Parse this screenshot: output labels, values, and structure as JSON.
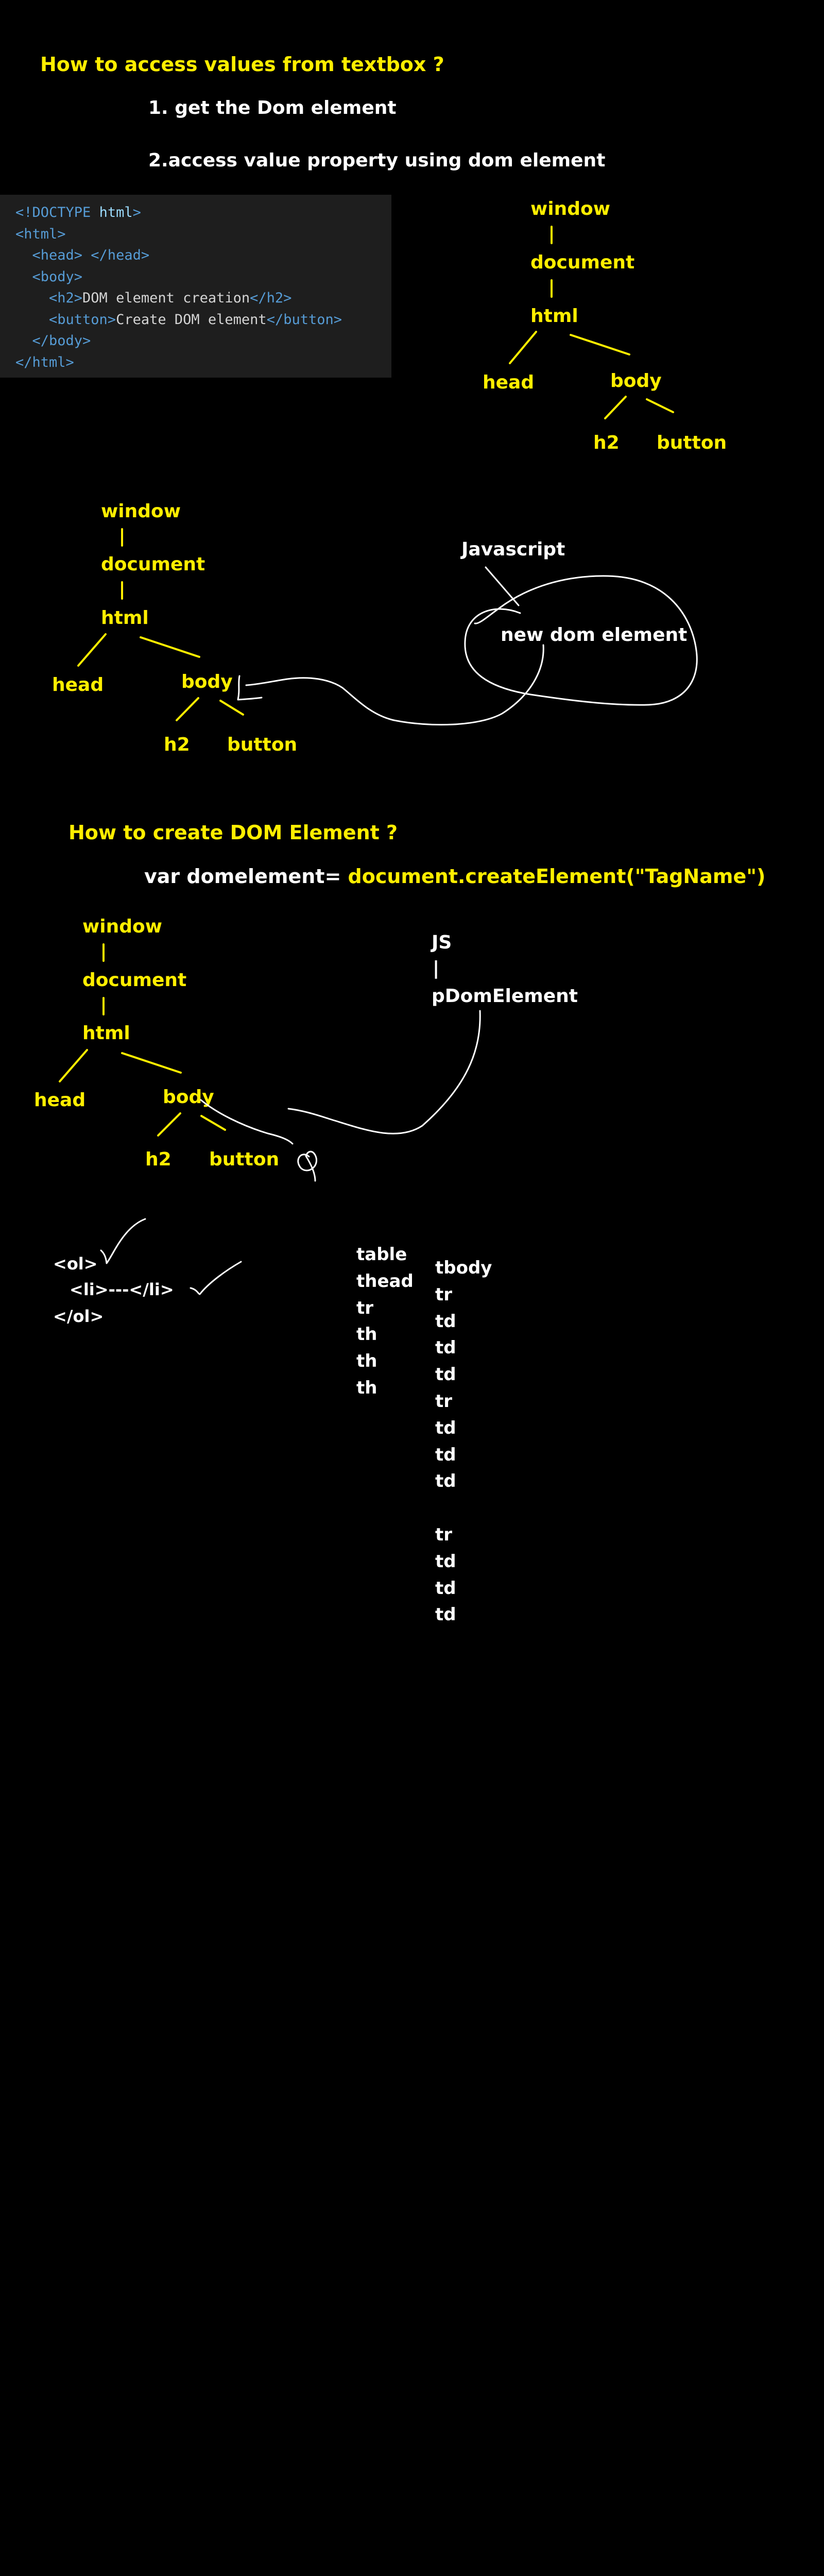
{
  "colors": {
    "accent_yellow": "#ffee00",
    "ink_white": "#ffffff",
    "background": "#000000",
    "code_bg": "#1e1e1e"
  },
  "heading_access": "How to access values from textbox ?",
  "steps": [
    "1. get the Dom element",
    "2.access value property using dom element"
  ],
  "code_lines": [
    {
      "open": "<!DOCTYPE ",
      "attr": "html",
      "close": ">",
      "text": "",
      "end": ""
    },
    {
      "open": "<html>",
      "attr": "",
      "close": "",
      "text": "",
      "end": ""
    },
    {
      "open": "  <head> </head>",
      "attr": "",
      "close": "",
      "text": "",
      "end": ""
    },
    {
      "open": "  <body>",
      "attr": "",
      "close": "",
      "text": "",
      "end": ""
    },
    {
      "open": "    <h2>",
      "attr": "",
      "close": "",
      "text": "DOM element creation",
      "end": "</h2>"
    },
    {
      "open": "    <button>",
      "attr": "",
      "close": "",
      "text": "Create DOM element",
      "end": "</button>"
    },
    {
      "open": "  </body>",
      "attr": "",
      "close": "",
      "text": "",
      "end": ""
    },
    {
      "open": "</html>",
      "attr": "",
      "close": "",
      "text": "",
      "end": ""
    }
  ],
  "tree1": {
    "window": "window",
    "document": "document",
    "html": "html",
    "head": "head",
    "body": "body",
    "h2": "h2",
    "button": "button"
  },
  "tree2": {
    "window": "window",
    "document": "document",
    "html": "html",
    "head": "head",
    "body": "body",
    "h2": "h2",
    "button": "button"
  },
  "javascript_label": "Javascript",
  "new_dom_element": "new dom element",
  "heading_create": "How to create DOM Element ?",
  "create_statement": {
    "prefix": "var domelement= ",
    "call": "document.createElement(\"TagName\")"
  },
  "tree3": {
    "window": "window",
    "document": "document",
    "html": "html",
    "head": "head",
    "body": "body",
    "h2": "h2",
    "button": "button"
  },
  "js_stack": {
    "js": "JS",
    "bar": "|",
    "element": "pDomElement"
  },
  "list_markup": [
    "<ol>",
    "<li>---</li>",
    "</ol>"
  ],
  "table_head_col": [
    "table",
    "thead",
    "tr",
    "th",
    "th",
    "th"
  ],
  "tbody_col": [
    "tbody",
    "tr",
    "td",
    "td",
    "td",
    "tr",
    "td",
    "td",
    "td",
    "",
    "tr",
    "td",
    "td",
    "td"
  ]
}
